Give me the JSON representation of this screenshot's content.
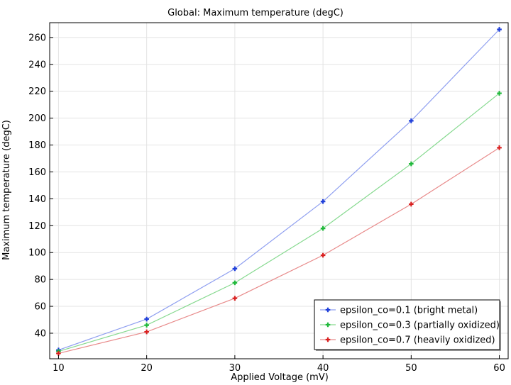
{
  "chart_data": {
    "type": "line",
    "title": "Global: Maximum temperature (degC)",
    "xlabel": "Applied Voltage (mV)",
    "ylabel": "Maximum temperature (degC)",
    "xlim": [
      9,
      61
    ],
    "ylim": [
      21,
      271
    ],
    "x_ticks": [
      10,
      20,
      30,
      40,
      50,
      60
    ],
    "y_ticks": [
      40,
      60,
      80,
      100,
      120,
      140,
      160,
      180,
      200,
      220,
      240,
      260
    ],
    "grid": true,
    "legend_position": "bottom-right",
    "x": [
      10,
      20,
      30,
      40,
      50,
      60
    ],
    "series": [
      {
        "name": "epsilon_co=0.1 (bright metal)",
        "color": "#1f3fd9",
        "line_color": "#8f9ff0",
        "values": [
          27.5,
          50.5,
          88,
          138,
          198,
          266
        ]
      },
      {
        "name": "epsilon_co=0.3 (partially oxidized)",
        "color": "#1fb83a",
        "line_color": "#86d98f",
        "values": [
          26.5,
          46,
          77.5,
          118,
          166,
          218.5
        ]
      },
      {
        "name": "epsilon_co=0.7 (heavily oxidized)",
        "color": "#d91f1f",
        "line_color": "#e88a8a",
        "values": [
          25,
          41,
          66,
          98,
          136,
          178
        ]
      }
    ]
  }
}
